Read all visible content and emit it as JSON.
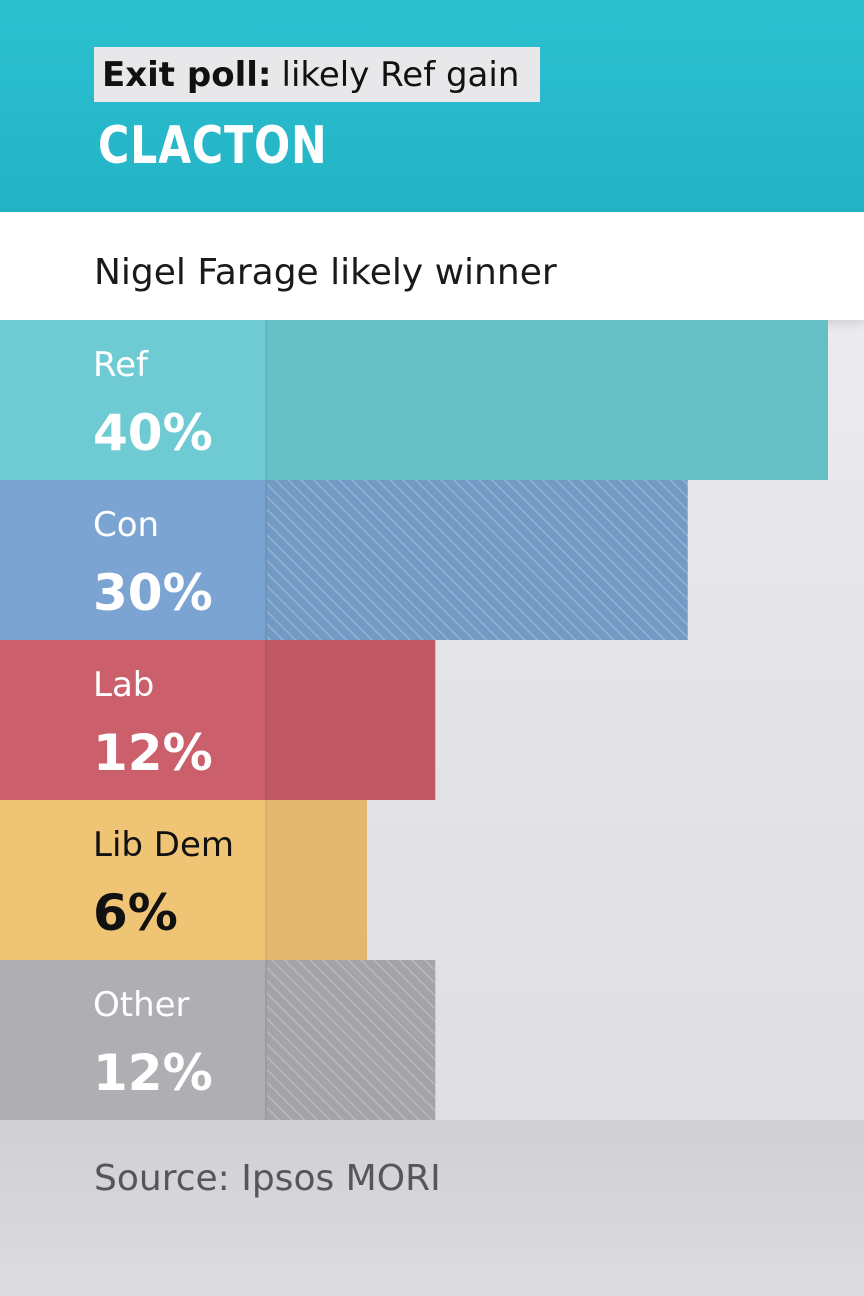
{
  "header": {
    "tag_bold": "Exit poll:",
    "tag_rest": "likely Ref gain",
    "constituency": "CLACTON"
  },
  "subheadline": "Nigel Farage likely winner",
  "source": "Source: Ipsos MORI",
  "colors": {
    "header_bg": "#26b8c9",
    "Ref": "#6ecbd3",
    "Con": "#7ba4d2",
    "Lab": "#cc5f6c",
    "Lib Dem": "#f0c475",
    "Other": "#aeaeb3"
  },
  "chart_data": {
    "type": "bar",
    "orientation": "horizontal",
    "title": "CLACTON",
    "categories": [
      "Ref",
      "Con",
      "Lab",
      "Lib Dem",
      "Other"
    ],
    "values": [
      40,
      30,
      12,
      6,
      12
    ],
    "value_labels": [
      "40%",
      "30%",
      "12%",
      "6%",
      "12%"
    ],
    "hatched": [
      false,
      true,
      false,
      false,
      true
    ],
    "xlim": [
      0,
      40
    ],
    "grid": false,
    "legend": "none"
  }
}
